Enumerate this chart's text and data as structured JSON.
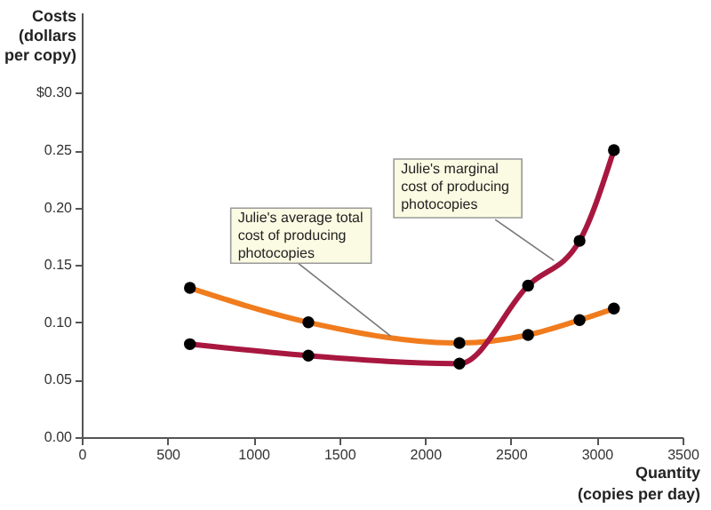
{
  "chart_data": {
    "type": "line",
    "xlabel": "Quantity\n(copies per day)",
    "ylabel": "Costs\n(dollars\nper copy)",
    "x": [
      630,
      1320,
      2200,
      2600,
      2900,
      3100
    ],
    "series": [
      {
        "color": "#f07c1e",
        "values": [
          0.13,
          0.1,
          0.082,
          0.089,
          0.102,
          0.112
        ]
      },
      {
        "color": "#a8173f",
        "values": [
          0.081,
          0.071,
          0.064,
          0.132,
          0.171,
          0.25
        ]
      }
    ],
    "xlim": [
      0,
      3500
    ],
    "xticks": [
      0,
      500,
      1000,
      1500,
      2000,
      2500,
      3000,
      3500
    ],
    "ylim": [
      0,
      0.37
    ],
    "yticks": [
      {
        "value": 0,
        "label": "0.00"
      },
      {
        "value": 0.05,
        "label": "0.05"
      },
      {
        "value": 0.1,
        "label": "0.10"
      },
      {
        "value": 0.15,
        "label": "0.15"
      },
      {
        "value": 0.2,
        "label": "0.20"
      },
      {
        "value": 0.25,
        "label": "0.25"
      },
      {
        "value": 0.3,
        "label": "$0.30"
      }
    ],
    "annotations": [
      {
        "text": "Julie's average total\ncost of producing\nphotocopies",
        "x": 1800,
        "y": 0.088
      },
      {
        "text": "Julie's marginal\ncost of producing\nphotocopies",
        "x": 2750,
        "y": 0.154
      }
    ],
    "marker": "circle",
    "line_style": "solid",
    "grid": false
  }
}
